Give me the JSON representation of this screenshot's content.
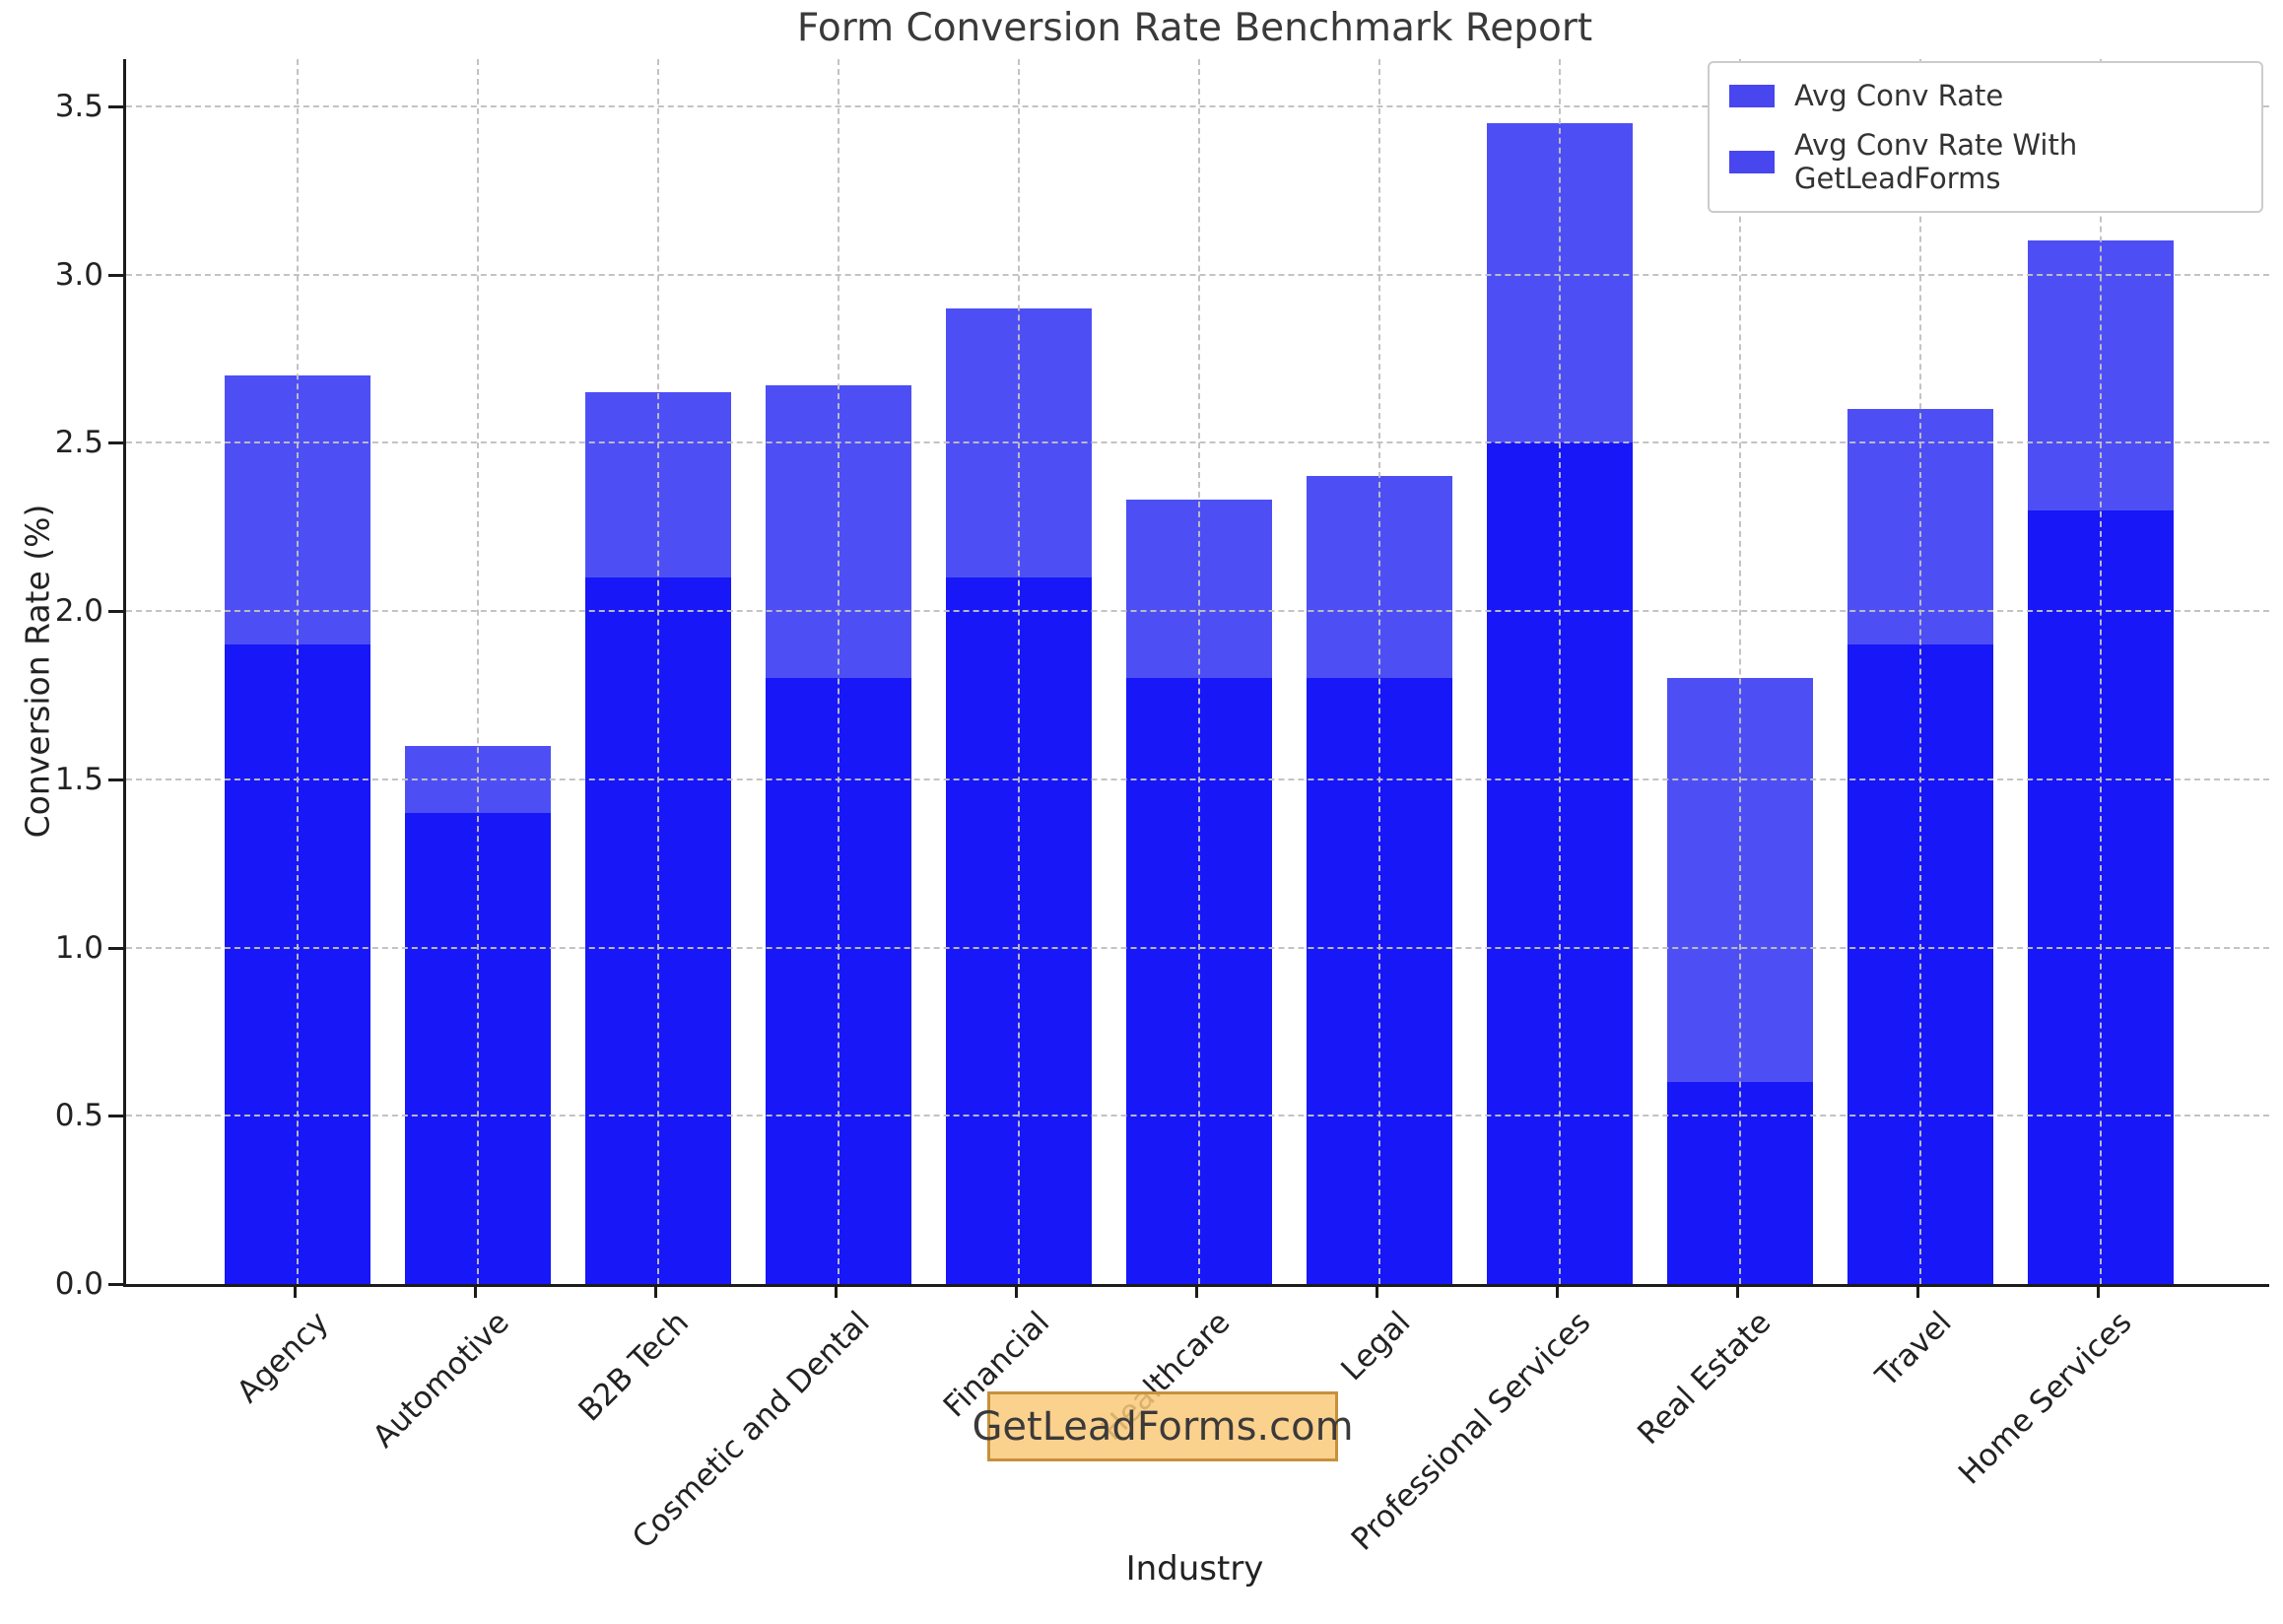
{
  "title": "Form Conversion Rate Benchmark Report",
  "axes": {
    "x_label": "Industry",
    "y_label": "Conversion Rate (%)",
    "y_ticks": [
      0.0,
      0.5,
      1.0,
      1.5,
      2.0,
      2.5,
      3.0,
      3.5
    ],
    "y_max": 3.64,
    "spine_color": "#1c1c1c",
    "grid_color": "#c0c0c0",
    "grid_style": "dashed"
  },
  "legend": {
    "swatch_color": "#4846ee",
    "items": [
      {
        "label": "Avg Conv Rate"
      },
      {
        "label": "Avg Conv Rate With GetLeadForms"
      }
    ]
  },
  "watermark": {
    "text": "GetLeadForms.com",
    "bg_color": "rgba(250,201,122,0.85)",
    "border_color": "#c6913d",
    "text_color": "#3a3a3a"
  },
  "chart_data": {
    "type": "bar",
    "title": "Form Conversion Rate Benchmark Report",
    "xlabel": "Industry",
    "ylabel": "Conversion Rate (%)",
    "ylim": [
      0,
      3.64
    ],
    "grid": "dashed gray, drawn above bars",
    "legend_position": "upper right",
    "bar_layout": "overlaid (not stacked), same x centers",
    "categories": [
      "Agency",
      "Automotive",
      "B2B Tech",
      "Cosmetic and Dental",
      "Financial",
      "Healthcare",
      "Legal",
      "Professional Services",
      "Real Estate",
      "Travel",
      "Home Services"
    ],
    "series": [
      {
        "name": "Avg Conv Rate",
        "values": [
          1.9,
          1.4,
          2.1,
          1.8,
          2.1,
          1.8,
          1.8,
          2.5,
          0.6,
          1.9,
          2.3
        ],
        "color": "#1717f8"
      },
      {
        "name": "Avg Conv Rate With GetLeadForms",
        "values": [
          2.7,
          1.6,
          2.65,
          2.67,
          2.9,
          2.33,
          2.4,
          3.45,
          1.8,
          2.6,
          3.1
        ],
        "color": "#4d4ff5"
      }
    ]
  }
}
